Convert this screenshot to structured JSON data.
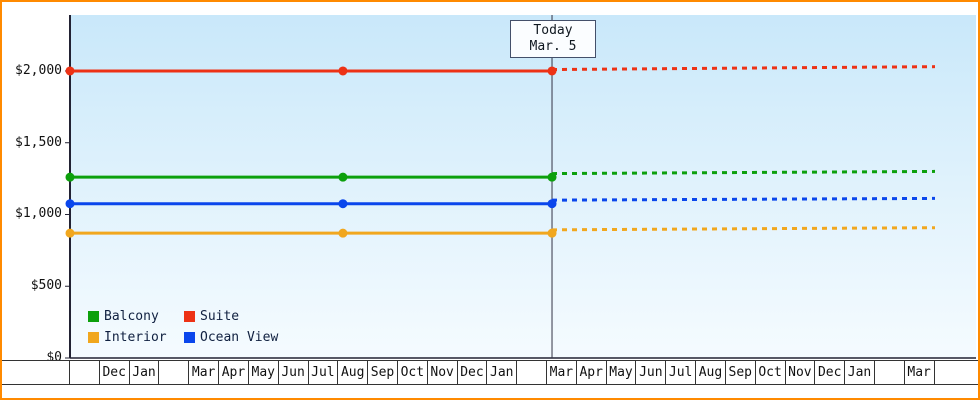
{
  "chart_data": {
    "type": "line",
    "title": "",
    "grid": false,
    "today_marker": {
      "label_line1": "Today",
      "label_line2": "Mar. 5",
      "month_index": 16.16
    },
    "y_axis": {
      "max": 2390,
      "ticks": [
        {
          "value": 0,
          "label": "$0"
        },
        {
          "value": 500,
          "label": "$500"
        },
        {
          "value": 1000,
          "label": "$1,000"
        },
        {
          "value": 1500,
          "label": "$1,500"
        },
        {
          "value": 2000,
          "label": "$2,000"
        }
      ]
    },
    "x_axis": {
      "months": [
        "",
        "Dec",
        "Jan",
        "",
        "Mar",
        "Apr",
        "May",
        "Jun",
        "Jul",
        "Aug",
        "Sep",
        "Oct",
        "Nov",
        "Dec",
        "Jan",
        "",
        "Mar",
        "Apr",
        "May",
        "Jun",
        "Jul",
        "Aug",
        "Sep",
        "Oct",
        "Nov",
        "Dec",
        "Jan",
        "",
        "Mar"
      ]
    },
    "dot_month_indices": [
      0,
      9.15,
      16.16
    ],
    "series": [
      {
        "name": "Suite",
        "color": "#ed3215",
        "value": 2000,
        "forecast_start": 2010,
        "forecast_end": 2030
      },
      {
        "name": "Balcony",
        "color": "#0ca00c",
        "value": 1260,
        "forecast_start": 1285,
        "forecast_end": 1300
      },
      {
        "name": "Ocean View",
        "color": "#0a46ec",
        "value": 1075,
        "forecast_start": 1100,
        "forecast_end": 1112
      },
      {
        "name": "Interior",
        "color": "#f1a71e",
        "value": 870,
        "forecast_start": 893,
        "forecast_end": 908
      }
    ],
    "legend": {
      "position": "bottom-left",
      "items": [
        {
          "label": "Balcony",
          "color": "#0ca00c"
        },
        {
          "label": "Suite",
          "color": "#ed3215"
        },
        {
          "label": "Interior",
          "color": "#f1a71e"
        },
        {
          "label": "Ocean View",
          "color": "#0a46ec"
        }
      ]
    },
    "colors": {
      "frame_border": "#ff8a00",
      "axis": "#222233",
      "plot_gradient_top": "#c9e8fa",
      "plot_gradient_bottom": "#f5fbff"
    }
  }
}
